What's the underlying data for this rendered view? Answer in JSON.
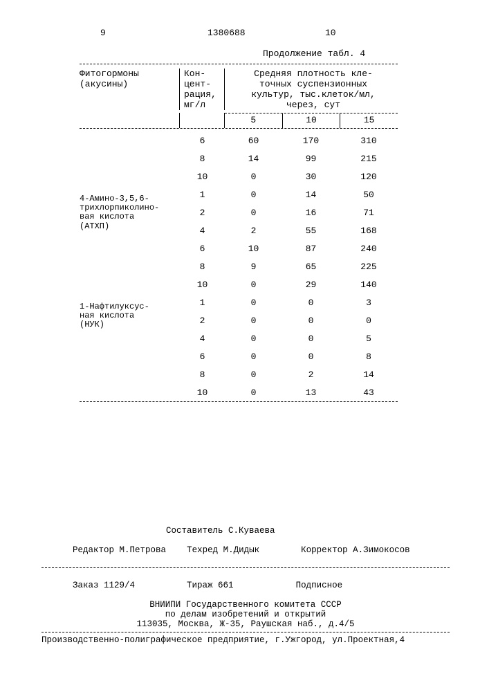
{
  "page": {
    "left_num": "9",
    "patent_num": "1380688",
    "right_num": "10",
    "continuation": "Продолжение табл. 4"
  },
  "table": {
    "headers": {
      "hormone": "Фитогормоны\n(акусины)",
      "conc": "Кон-\nцент-\nрация,\nмг/л",
      "density": "Средняя плотность кле-\nточных суспензионных\nкультур, тыс.клеток/мл,\nчерез, сут",
      "d5": "5",
      "d10": "10",
      "d15": "15"
    },
    "groups": [
      {
        "label": "",
        "rows": [
          {
            "conc": "6",
            "d5": "60",
            "d10": "170",
            "d15": "310"
          },
          {
            "conc": "8",
            "d5": "14",
            "d10": "99",
            "d15": "215"
          },
          {
            "conc": "10",
            "d5": "0",
            "d10": "30",
            "d15": "120"
          }
        ]
      },
      {
        "label": "4-Амино-3,5,6-\nтрихлорпиколино-\nвая кислота\n(АТХП)",
        "rows": [
          {
            "conc": "1",
            "d5": "0",
            "d10": "14",
            "d15": "50"
          },
          {
            "conc": "2",
            "d5": "0",
            "d10": "16",
            "d15": "71"
          },
          {
            "conc": "4",
            "d5": "2",
            "d10": "55",
            "d15": "168"
          },
          {
            "conc": "6",
            "d5": "10",
            "d10": "87",
            "d15": "240"
          },
          {
            "conc": "8",
            "d5": "9",
            "d10": "65",
            "d15": "225"
          },
          {
            "conc": "10",
            "d5": "0",
            "d10": "29",
            "d15": "140"
          }
        ]
      },
      {
        "label": "1-Нафтилуксус-\nная кислота\n(НУК)",
        "rows": [
          {
            "conc": "1",
            "d5": "0",
            "d10": "0",
            "d15": "3"
          },
          {
            "conc": "2",
            "d5": "0",
            "d10": "0",
            "d15": "0"
          },
          {
            "conc": "4",
            "d5": "0",
            "d10": "0",
            "d15": "5"
          },
          {
            "conc": "6",
            "d5": "0",
            "d10": "0",
            "d15": "8"
          },
          {
            "conc": "8",
            "d5": "0",
            "d10": "2",
            "d15": "14"
          },
          {
            "conc": "10",
            "d5": "0",
            "d10": "13",
            "d15": "43"
          }
        ]
      }
    ]
  },
  "colophon": {
    "compiler": "Составитель С.Куваева",
    "editor": "Редактор М.Петрова",
    "techred": "Техред М.Дидык",
    "corrector": "Корректор А.Зимокосов",
    "order": "Заказ 1129/4",
    "tirazh": "Тираж 661",
    "podpisnoe": "Подписное",
    "vniipi": "ВНИИПИ Государственного комитета СССР",
    "affairs": "по делам изобретений и открытий",
    "address": "113035, Москва, Ж-35, Раушская наб., д.4/5",
    "printer": "Производственно-полиграфическое предприятие, г.Ужгород, ул.Проектная,4"
  }
}
